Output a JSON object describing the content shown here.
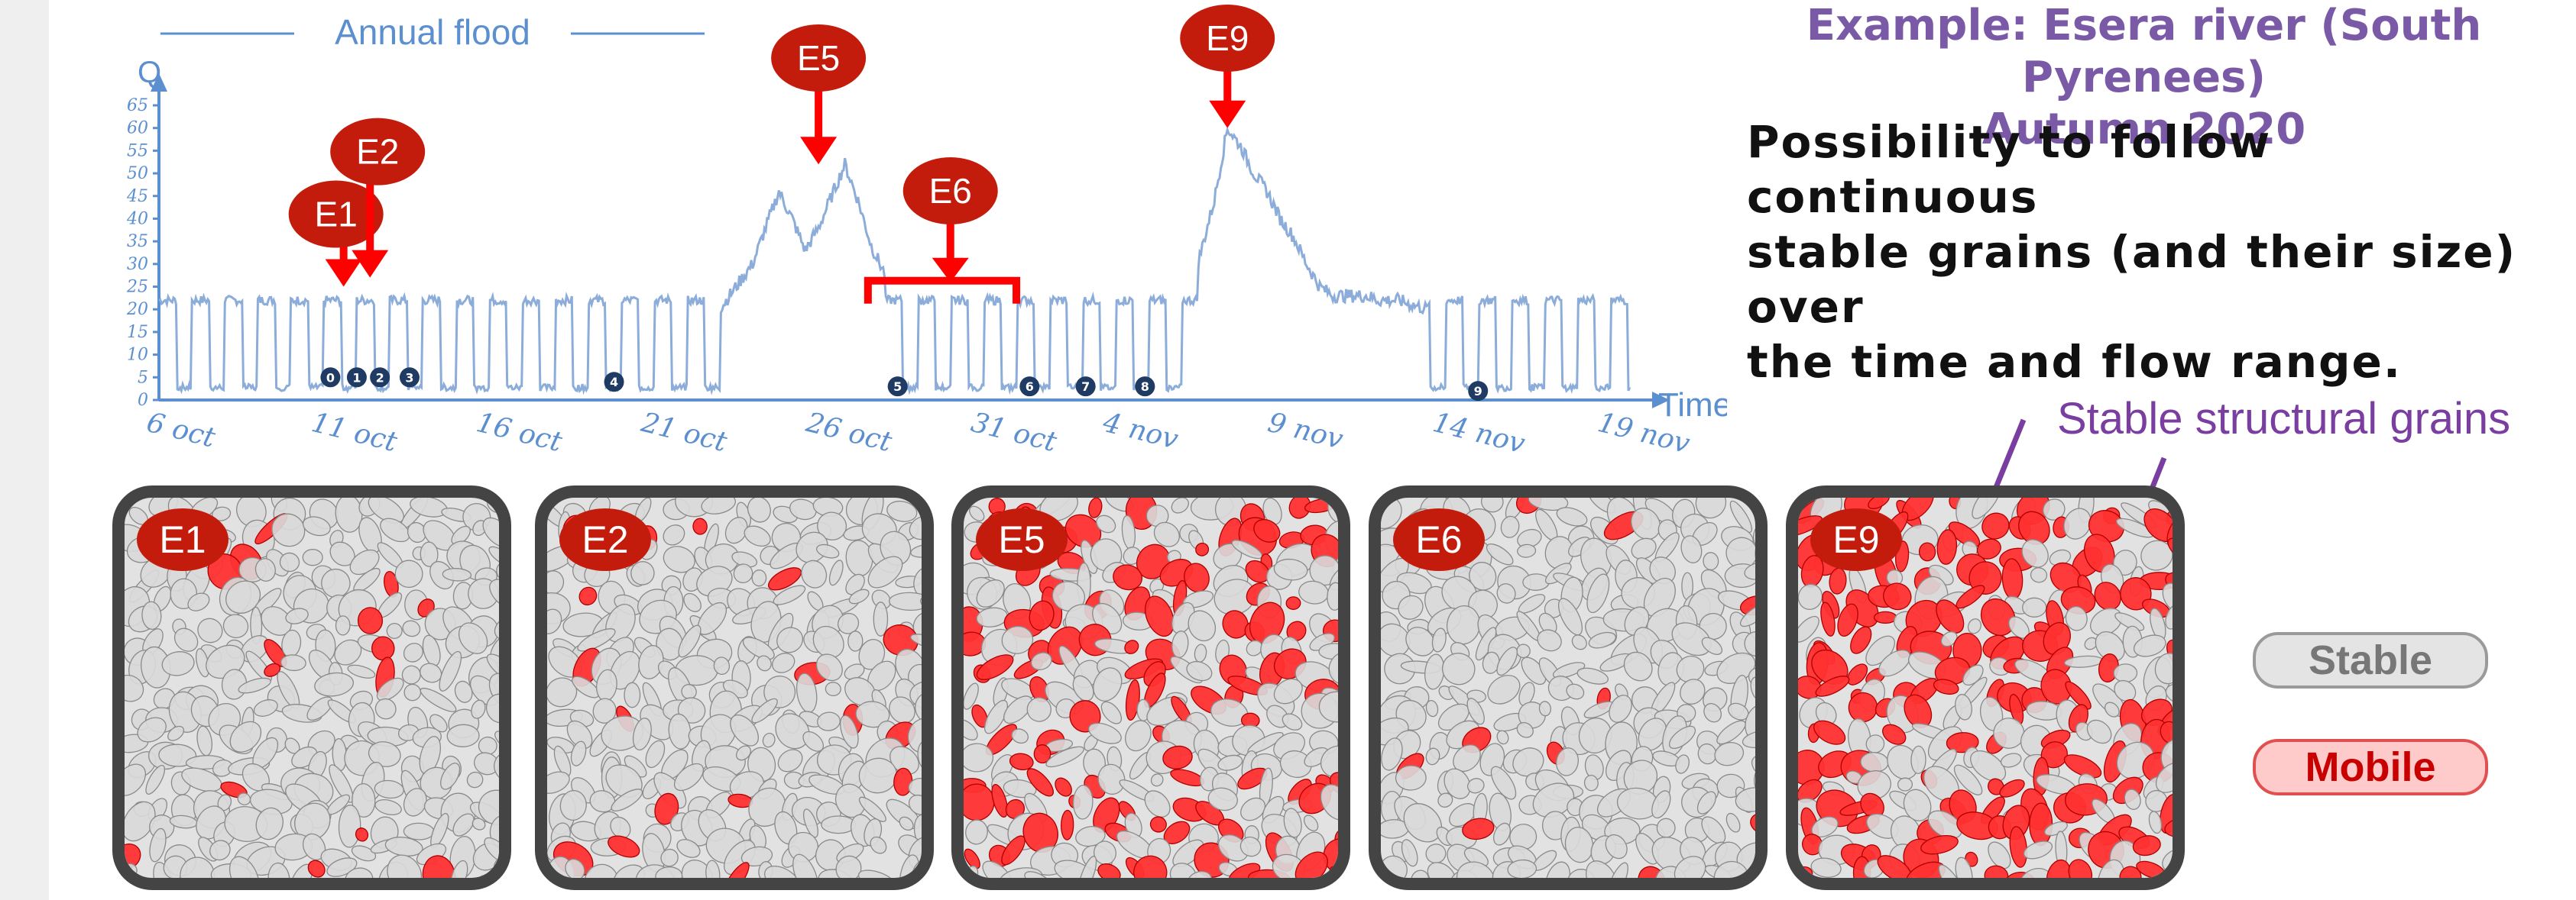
{
  "title": {
    "line1": "Example: Esera river (South Pyrenees)",
    "line2": "Autumn 2020"
  },
  "description": [
    "Possibility to follow continuous",
    "stable grains (and their size) over",
    "the time and flow range."
  ],
  "annotation": "Stable structural grains",
  "legend": {
    "stable": "Stable",
    "mobile": "Mobile"
  },
  "colors": {
    "title": "#7a5aa6",
    "hydrograph": "#8cadd9",
    "axis": "#5b8fd0",
    "event_marker": "#c31c0c",
    "arrow": "#ff0000",
    "mobile_grain": "#ff3030",
    "stable_grain": "#e2e2e2",
    "annotation": "#7a3ea0"
  },
  "chart_data": {
    "type": "line",
    "title": "Annual flood",
    "ylabel": "Q",
    "xlabel": "Time",
    "ylim": [
      0,
      65
    ],
    "yticks": [
      0,
      5,
      10,
      15,
      20,
      25,
      30,
      35,
      40,
      45,
      50,
      55,
      60,
      65
    ],
    "xlim": [
      0,
      45
    ],
    "xticks": [
      {
        "x": 0,
        "label": "6 oct"
      },
      {
        "x": 5,
        "label": "11 oct"
      },
      {
        "x": 10,
        "label": "16 oct"
      },
      {
        "x": 15,
        "label": "21 oct"
      },
      {
        "x": 20,
        "label": "26 oct"
      },
      {
        "x": 25,
        "label": "31 oct"
      },
      {
        "x": 29,
        "label": "4 nov"
      },
      {
        "x": 34,
        "label": "9 nov"
      },
      {
        "x": 39,
        "label": "14 nov"
      },
      {
        "x": 44,
        "label": "19 nov"
      }
    ],
    "flood_segments": [
      {
        "x": [
          17.0,
          17.5,
          18.0,
          18.4,
          18.8,
          19.2,
          19.6,
          20.0,
          20.4,
          20.8,
          21.2,
          21.6,
          22.0
        ],
        "y": [
          20,
          25,
          30,
          38,
          46,
          40,
          33,
          38,
          45,
          52,
          44,
          34,
          28
        ]
      },
      {
        "x": [
          31.5,
          32.0,
          32.4,
          32.8,
          33.2,
          33.6,
          34.0,
          34.4,
          34.8,
          35.2,
          35.6,
          36.0,
          36.6,
          37.0,
          37.6,
          38.0,
          38.5
        ],
        "y": [
          30,
          44,
          60,
          56,
          50,
          46,
          40,
          36,
          30,
          25,
          23,
          23,
          23,
          22,
          22,
          21,
          20
        ]
      }
    ],
    "baseline_low": 2,
    "baseline_high": 22,
    "numbered_points": [
      {
        "x": 5.2,
        "y": 5,
        "label": "0"
      },
      {
        "x": 6.0,
        "y": 5,
        "label": "1"
      },
      {
        "x": 6.7,
        "y": 5,
        "label": "2"
      },
      {
        "x": 7.6,
        "y": 5,
        "label": "3"
      },
      {
        "x": 13.8,
        "y": 4,
        "label": "4"
      },
      {
        "x": 22.4,
        "y": 3,
        "label": "5"
      },
      {
        "x": 26.4,
        "y": 3,
        "label": "6"
      },
      {
        "x": 28.1,
        "y": 3,
        "label": "7"
      },
      {
        "x": 29.9,
        "y": 3,
        "label": "8"
      },
      {
        "x": 40.0,
        "y": 2,
        "label": "9"
      }
    ],
    "events": [
      {
        "label": "E1",
        "x": 5.6,
        "y": 25
      },
      {
        "label": "E2",
        "x": 6.4,
        "y": 27
      },
      {
        "label": "E5",
        "x": 20.0,
        "y": 52
      },
      {
        "label": "E6",
        "x": 24.0,
        "y": 28,
        "range": [
          21.5,
          26.0
        ]
      },
      {
        "label": "E9",
        "x": 32.4,
        "y": 60
      }
    ]
  },
  "panels": [
    {
      "label": "E1",
      "mobile_fraction": 0.04
    },
    {
      "label": "E2",
      "mobile_fraction": 0.07
    },
    {
      "label": "E5",
      "mobile_fraction": 0.38
    },
    {
      "label": "E6",
      "mobile_fraction": 0.05
    },
    {
      "label": "E9",
      "mobile_fraction": 0.55
    }
  ]
}
